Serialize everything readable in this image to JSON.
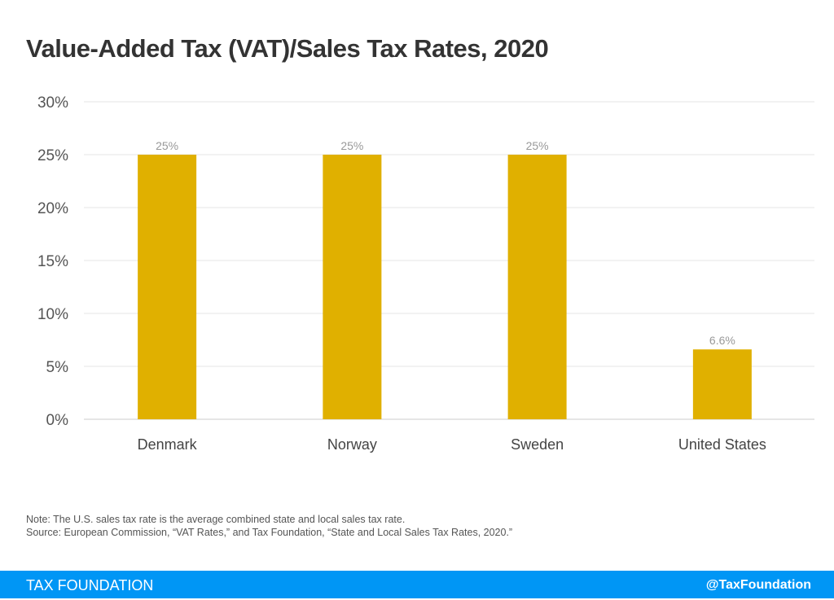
{
  "chart_data": {
    "type": "bar",
    "title": "Value-Added Tax (VAT)/Sales Tax Rates, 2020",
    "categories": [
      "Denmark",
      "Norway",
      "Sweden",
      "United States"
    ],
    "values": [
      25,
      25,
      25,
      6.6
    ],
    "data_labels": [
      "25%",
      "25%",
      "25%",
      "6.6%"
    ],
    "xlabel": "",
    "ylabel": "",
    "ylim": [
      0,
      30
    ],
    "yticks": [
      0,
      5,
      10,
      15,
      20,
      25,
      30
    ],
    "ytick_labels": [
      "0%",
      "5%",
      "10%",
      "15%",
      "20%",
      "25%",
      "30%"
    ],
    "grid": true,
    "bar_color": "#e0b000"
  },
  "notes": {
    "note": "Note: The U.S. sales tax rate is the average combined state and local sales tax rate.",
    "source": "Source: European Commission, “VAT Rates,” and Tax Foundation, “State and Local Sales Tax Rates, 2020.”"
  },
  "footer": {
    "brand": "TAX FOUNDATION",
    "handle": "@TaxFoundation"
  }
}
